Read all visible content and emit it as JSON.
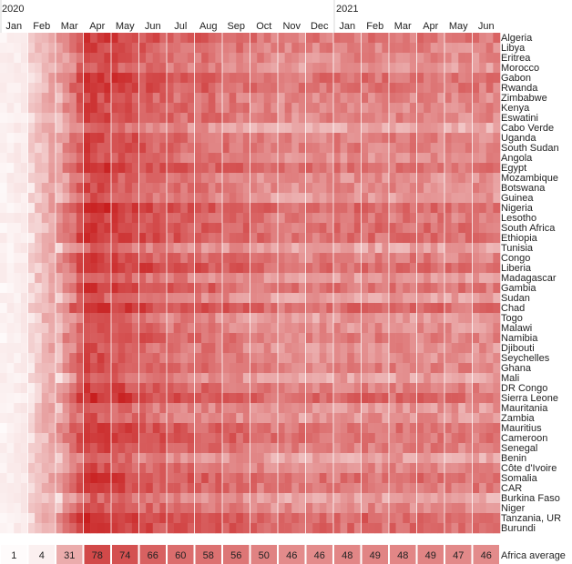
{
  "chart_data": {
    "type": "heatmap",
    "title": "",
    "year_labels": [
      "2020",
      "2021"
    ],
    "months": [
      "Jan",
      "Feb",
      "Mar",
      "Apr",
      "May",
      "Jun",
      "Jul",
      "Aug",
      "Sep",
      "Oct",
      "Nov",
      "Dec",
      "Jan",
      "Feb",
      "Mar",
      "Apr",
      "May",
      "Jun"
    ],
    "countries": [
      "Algeria",
      "Libya",
      "Eritrea",
      "Morocco",
      "Gabon",
      "Rwanda",
      "Zimbabwe",
      "Kenya",
      "Eswatini",
      "Cabo Verde",
      "Uganda",
      "South Sudan",
      "Angola",
      "Egypt",
      "Mozambique",
      "Botswana",
      "Guinea",
      "Nigeria",
      "Lesotho",
      "South Africa",
      "Ethiopia",
      "Tunisia",
      "Congo",
      "Liberia",
      "Madagascar",
      "Gambia",
      "Sudan",
      "Chad",
      "Togo",
      "Malawi",
      "Namibia",
      "Djibouti",
      "Seychelles",
      "Ghana",
      "Mali",
      "DR Congo",
      "Sierra Leone",
      "Mauritania",
      "Zambia",
      "Mauritius",
      "Cameroon",
      "Senegal",
      "Benin",
      "Côte d'Ivoire",
      "Somalia",
      "CAR",
      "Burkina Faso",
      "Niger",
      "Tanzania, UR",
      "Burundi"
    ],
    "average_label": "Africa average",
    "average_values": [
      1,
      4,
      31,
      78,
      74,
      66,
      60,
      58,
      56,
      50,
      46,
      46,
      48,
      49,
      48,
      49,
      47,
      46
    ],
    "value_range": [
      0,
      100
    ],
    "color_low": "#ffffff",
    "color_high": "#c81e1e",
    "legend": "none"
  }
}
